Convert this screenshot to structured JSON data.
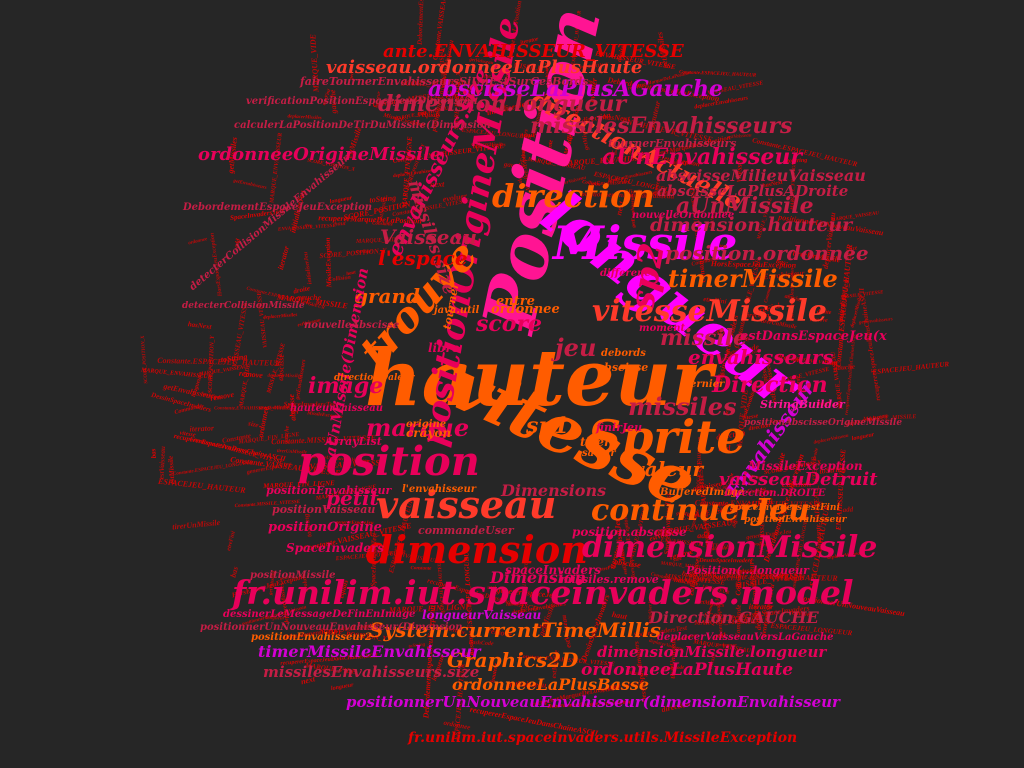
{
  "palette": [
    "#ff5c00",
    "#e8005a",
    "#c51d45",
    "#ff1493",
    "#d400d4",
    "#b30000",
    "#ff3a2a",
    "#e60000",
    "#ff00ff"
  ],
  "words": [
    {
      "text": "hauteur",
      "color": "#ff5c00"
    },
    {
      "text": "vitesse",
      "color": "#ff5c00"
    },
    {
      "text": "Position",
      "color": "#ff1493"
    },
    {
      "text": "longueur",
      "color": "#ff00ff"
    },
    {
      "text": "Missile",
      "color": "#ff00ff"
    },
    {
      "text": "position",
      "color": "#e8005a"
    },
    {
      "text": "vaisseau",
      "color": "#ff3a2a"
    },
    {
      "text": "Sprite",
      "color": "#ff5c00"
    },
    {
      "text": "dimension",
      "color": "#e60000"
    },
    {
      "text": "fr.unilim.iut.spaceinvaders.model",
      "color": "#e8005a"
    },
    {
      "text": "positionOrigineMissile",
      "color": "#e8005a"
    },
    {
      "text": "trouve",
      "color": "#ff5c00"
    },
    {
      "text": "dimensionMissile",
      "color": "#e8005a"
    },
    {
      "text": "continuerJeu",
      "color": "#ff5c00"
    },
    {
      "text": "directionActuelle",
      "color": "#ff3a2a"
    },
    {
      "text": "direction",
      "color": "#ff5c00"
    },
    {
      "text": "sp2",
      "color": "#e8005a"
    },
    {
      "text": "timerMissile",
      "color": "#ff5c00"
    },
    {
      "text": "vitesseMissile",
      "color": "#ff3a2a"
    },
    {
      "text": "aUnEnvahisseur",
      "color": "#e8005a"
    },
    {
      "text": "aUnMissile",
      "color": "#c51d45"
    },
    {
      "text": "abscisseLaPlusAGauche",
      "color": "#d400d4"
    },
    {
      "text": "missilesEnvahisseurs",
      "color": "#c51d45"
    },
    {
      "text": "dimension.longueur",
      "color": "#c51d45"
    },
    {
      "text": "vaisseau.ordonneeLaPlusHaute",
      "color": "#ff3a2a"
    },
    {
      "text": "ante.ENVAHISSEUR_VITESSE",
      "color": "#e60000"
    },
    {
      "text": "abscisseMilieuVaisseau",
      "color": "#c51d45"
    },
    {
      "text": "abscisseLaPlusADroite",
      "color": "#c51d45"
    },
    {
      "text": "dimension.hauteur",
      "color": "#c51d45"
    },
    {
      "text": "position.ordonnee",
      "color": "#c51d45"
    },
    {
      "text": "envahisseurs.size",
      "color": "#e8005a"
    },
    {
      "text": "missiles.size",
      "color": "#c51d45"
    },
    {
      "text": "ordonneeOrigineMissile",
      "color": "#e8005a"
    },
    {
      "text": "l'espace",
      "color": "#e60000"
    },
    {
      "text": "Vaisseau",
      "color": "#c51d45"
    },
    {
      "text": "grand",
      "color": "#ff5c00"
    },
    {
      "text": "score",
      "color": "#e8005a"
    },
    {
      "text": "image",
      "color": "#e8005a"
    },
    {
      "text": "jeu",
      "color": "#c51d45"
    },
    {
      "text": "missile",
      "color": "#c51d45"
    },
    {
      "text": "envahisseurs",
      "color": "#e8005a"
    },
    {
      "text": "Direction",
      "color": "#e8005a"
    },
    {
      "text": "missiles",
      "color": "#c51d45"
    },
    {
      "text": "marque",
      "color": "#e8005a"
    },
    {
      "text": "sp1",
      "color": "#ff5c00"
    },
    {
      "text": "valeur",
      "color": "#ff5c00"
    },
    {
      "text": "Envahisseur",
      "color": "#d400d4"
    },
    {
      "text": "vaisseauDetruit",
      "color": "#e8005a"
    },
    {
      "text": "petit",
      "color": "#e8005a"
    },
    {
      "text": "Dimensions",
      "color": "#c51d45"
    },
    {
      "text": "Dimension",
      "color": "#e8005a"
    },
    {
      "text": "System.currentTimeMillis",
      "color": "#ff5c00"
    },
    {
      "text": "Graphics2D",
      "color": "#ff5c00"
    },
    {
      "text": "timerMissileEnvahisseur",
      "color": "#d400d4"
    },
    {
      "text": "missilesEnvahisseurs.size",
      "color": "#c51d45"
    },
    {
      "text": "ordonneeLaPlusBasse",
      "color": "#ff5c00"
    },
    {
      "text": "ordonneeLaPlusHaute",
      "color": "#e8005a"
    },
    {
      "text": "dimensionMissile.longueur",
      "color": "#e8005a"
    },
    {
      "text": "Direction.GAUCHE",
      "color": "#c51d45"
    },
    {
      "text": "positionnerUnNouveauEnvahisseur(dimensionEnvahisseur",
      "color": "#d400d4"
    },
    {
      "text": "fr.unilim.iut.spaceinvaders.utils.MissileException",
      "color": "#e60000"
    },
    {
      "text": "aUnMissile(Dimension",
      "color": "#e8005a"
    },
    {
      "text": "positionEnvahisseur",
      "color": "#e8005a"
    },
    {
      "text": "positionOrigine",
      "color": "#e8005a"
    },
    {
      "text": "SpaceInvaders",
      "color": "#e8005a"
    },
    {
      "text": "estDansEspaceJeu(x",
      "color": "#e8005a"
    },
    {
      "text": "MissileException",
      "color": "#e8005a"
    },
    {
      "text": "spaceInvaders",
      "color": "#e8005a"
    },
    {
      "text": "position.abscisse",
      "color": "#e8005a"
    },
    {
      "text": "Position(...longueur",
      "color": "#e8005a"
    },
    {
      "text": "longueurVaisseau",
      "color": "#d400d4"
    },
    {
      "text": "deplacerVaisseauVersLaGauche",
      "color": "#e8005a"
    },
    {
      "text": "ArrayList",
      "color": "#e8005a"
    },
    {
      "text": "StringBuilder",
      "color": "#ff1493"
    },
    {
      "text": "hauteurVaisseau",
      "color": "#e8005a"
    },
    {
      "text": "faireTournerEnvahisseursSiUnEstSurCesBords",
      "color": "#c51d45"
    },
    {
      "text": "verificationPositionEspaceJeu(Dimension",
      "color": "#c51d45"
    },
    {
      "text": "calculerLaPositionDeTirDuMissile(Dimension",
      "color": "#c51d45"
    },
    {
      "text": "DebordementEspaceJeuException",
      "color": "#c51d45"
    },
    {
      "text": "detecterCollisionMissileEnvahisseur",
      "color": "#c51d45"
    },
    {
      "text": "positionVaisseau",
      "color": "#c51d45"
    },
    {
      "text": "commandeUser",
      "color": "#c51d45"
    },
    {
      "text": "BufferedImage",
      "color": "#ff5c00"
    },
    {
      "text": "Direction.DROITE",
      "color": "#e8005a"
    },
    {
      "text": "nouvelleAbscisse",
      "color": "#c51d45"
    },
    {
      "text": "nouvelleOrdonnee",
      "color": "#e8005a"
    },
    {
      "text": "crayon",
      "color": "#ff5c00"
    },
    {
      "text": "tourner",
      "color": "#ff5c00"
    },
    {
      "text": "tournerEnvahisseurs",
      "color": "#c51d45"
    },
    {
      "text": "missiles.remove",
      "color": "#e8005a"
    },
    {
      "text": "positionMissile",
      "color": "#c51d45"
    },
    {
      "text": "positionEnvahisseur2",
      "color": "#ff5c00"
    },
    {
      "text": "dessinerLeMessageDeFinEnImage",
      "color": "#e8005a"
    },
    {
      "text": "positionnerUnNouveauEnvahisseur(Dimension",
      "color": "#c51d45"
    },
    {
      "text": "entre",
      "color": "#ff5c00"
    },
    {
      "text": "ordonnee",
      "color": "#ff5c00"
    },
    {
      "text": "abscisse",
      "color": "#ff5c00"
    },
    {
      "text": "difference",
      "color": "#e8005a"
    },
    {
      "text": "debords",
      "color": "#ff5c00"
    },
    {
      "text": "libre",
      "color": "#e8005a"
    },
    {
      "text": "finirJeu",
      "color": "#e8005a"
    },
    {
      "text": "origine",
      "color": "#ff5c00"
    },
    {
      "text": "tirer",
      "color": "#ff5c00"
    },
    {
      "text": "savoir",
      "color": "#ff5c00"
    },
    {
      "text": "java.util",
      "color": "#ff5c00"
    },
    {
      "text": "moment",
      "color": "#e8005a"
    },
    {
      "text": "dernier",
      "color": "#ff5c00"
    },
    {
      "text": "l'envahisseur",
      "color": "#ff5c00"
    },
    {
      "text": "direction.valeur",
      "color": "#ff5c00"
    },
    {
      "text": "spaceInvaders.estFini",
      "color": "#ff5c00"
    },
    {
      "text": "positionEnvahisseur",
      "color": "#ff5c00"
    },
    {
      "text": "positionAbscisseOrigineMissile",
      "color": "#c51d45"
    },
    {
      "text": "detecterCollisionMissile",
      "color": "#c51d45"
    },
    {
      "text": "Constante.ENVAHISSEUR_VITESSE",
      "color": "#e60000"
    },
    {
      "text": "Constante.VAISSEAU_VITESSE",
      "color": "#e60000"
    },
    {
      "text": "Constante.MISSILE_VITESSE",
      "color": "#e60000"
    },
    {
      "text": "Constante.ESPACEJEU_LONGUEUR",
      "color": "#e60000"
    },
    {
      "text": "Constante.ESPACEJEU_HAUTEUR",
      "color": "#e60000"
    },
    {
      "text": "deplacerEnvahisseurs",
      "color": "#e60000"
    },
    {
      "text": "deplacerMissiles",
      "color": "#e60000"
    },
    {
      "text": "deplacerVaisseau",
      "color": "#e60000"
    },
    {
      "text": "initialiserJeu",
      "color": "#e60000"
    },
    {
      "text": "positionnerUnNouveauVaisseau",
      "color": "#e60000"
    },
    {
      "text": "tirerUnMissile",
      "color": "#e60000"
    },
    {
      "text": "genererEspaceJeu",
      "color": "#e60000"
    },
    {
      "text": "recupererEspaceJeuDansChaineASCII",
      "color": "#e60000"
    },
    {
      "text": "recupererMarqueDeLaPosition",
      "color": "#e60000"
    },
    {
      "text": "estVaisseau",
      "color": "#e60000"
    },
    {
      "text": "estEnvahisseur",
      "color": "#e60000"
    },
    {
      "text": "estMissile",
      "color": "#e60000"
    },
    {
      "text": "evoluer",
      "color": "#e60000"
    },
    {
      "text": "etreFini",
      "color": "#e60000"
    },
    {
      "text": "getVaisseau",
      "color": "#e60000"
    },
    {
      "text": "getEnvahisseurs",
      "color": "#e60000"
    },
    {
      "text": "getMissiles",
      "color": "#e60000"
    },
    {
      "text": "MARQUE_VIDE",
      "color": "#e60000"
    },
    {
      "text": "MARQUE_VAISSEAU",
      "color": "#e60000"
    },
    {
      "text": "MARQUE_MISSILE",
      "color": "#e60000"
    },
    {
      "text": "MARQUE_ENVAHISSEUR",
      "color": "#e60000"
    },
    {
      "text": "MARQUE_FIN_LIGNE",
      "color": "#e60000"
    },
    {
      "text": "ESPACEJEU_LONGUEUR",
      "color": "#e60000"
    },
    {
      "text": "ESPACEJEU_HAUTEUR",
      "color": "#e60000"
    },
    {
      "text": "ENVAHISSEUR_VITESSE",
      "color": "#e60000"
    },
    {
      "text": "VAISSEAU_VITESSE",
      "color": "#e60000"
    },
    {
      "text": "MISSILE_VITESSE",
      "color": "#e60000"
    },
    {
      "text": "SCORE_POSITION_X",
      "color": "#e60000"
    },
    {
      "text": "SCORE_POSITION_Y",
      "color": "#e60000"
    },
    {
      "text": "HorsEspaceJeuException",
      "color": "#e60000"
    },
    {
      "text": "DebordementEspaceJeuException",
      "color": "#e60000"
    },
    {
      "text": "MissileException",
      "color": "#e60000"
    },
    {
      "text": "Collision",
      "color": "#e60000"
    },
    {
      "text": "Constante",
      "color": "#e60000"
    },
    {
      "text": "Commande",
      "color": "#e60000"
    },
    {
      "text": "DessinSpaceInvaders",
      "color": "#e60000"
    },
    {
      "text": "SpaceInvadersTest",
      "color": "#e60000"
    },
    {
      "text": "toString",
      "color": "#e60000"
    },
    {
      "text": "equals",
      "color": "#e60000"
    },
    {
      "text": "hashCode",
      "color": "#e60000"
    },
    {
      "text": "add",
      "color": "#e60000"
    },
    {
      "text": "remove",
      "color": "#e60000"
    },
    {
      "text": "size",
      "color": "#e60000"
    },
    {
      "text": "get",
      "color": "#e60000"
    },
    {
      "text": "iterator",
      "color": "#e60000"
    },
    {
      "text": "hasNext",
      "color": "#e60000"
    },
    {
      "text": "next",
      "color": "#e60000"
    },
    {
      "text": "gauche",
      "color": "#e60000"
    },
    {
      "text": "droite",
      "color": "#e60000"
    },
    {
      "text": "haut",
      "color": "#e60000"
    },
    {
      "text": "bas",
      "color": "#e60000"
    },
    {
      "text": "abscisse",
      "color": "#e60000"
    },
    {
      "text": "ordonnee",
      "color": "#e60000"
    },
    {
      "text": "longueur",
      "color": "#e60000"
    },
    {
      "text": "hauteur",
      "color": "#e60000"
    },
    {
      "text": "vitesse",
      "color": "#e60000"
    },
    {
      "text": "direction",
      "color": "#e60000"
    }
  ]
}
